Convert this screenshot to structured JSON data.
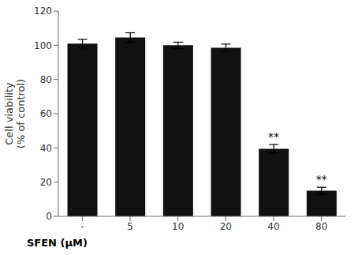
{
  "chart_data": {
    "type": "bar",
    "categories": [
      "-",
      "5",
      "10",
      "20",
      "40",
      "80"
    ],
    "values": [
      101.0,
      104.5,
      100.0,
      98.5,
      39.5,
      15.0
    ],
    "errors": [
      2.5,
      2.8,
      1.8,
      2.2,
      2.5,
      2.0
    ],
    "color": "#111111",
    "ylabel": "Cell viability\n(% of control)",
    "xlabel": "SFEN (μM)",
    "ylim": [
      0,
      120
    ],
    "yticks": [
      0,
      20,
      40,
      60,
      80,
      100,
      120
    ],
    "grid": false,
    "annotations": [
      {
        "category": "40",
        "text": "**"
      },
      {
        "category": "80",
        "text": "**"
      }
    ]
  }
}
